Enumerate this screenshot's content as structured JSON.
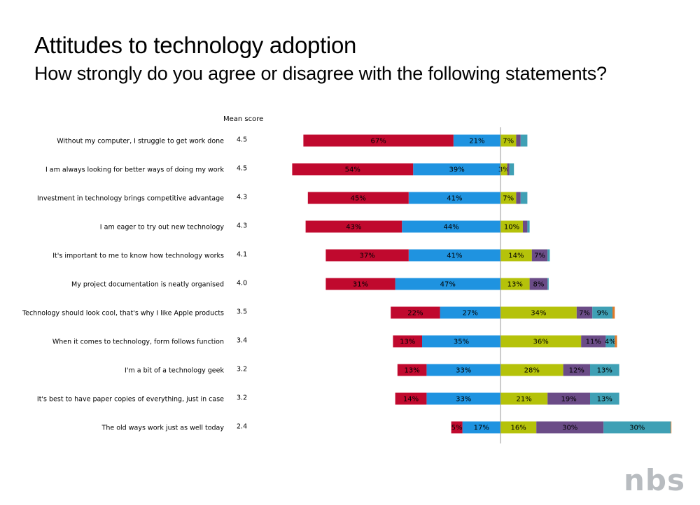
{
  "title": "Attitudes to technology adoption",
  "subtitle": "How strongly do you agree or disagree with the following statements?",
  "mean_header": "Mean score",
  "logo_text": "nbs",
  "colors": {
    "strongly_agree": "#c0092e",
    "agree": "#1f93e0",
    "neutral": "#b5c20a",
    "disagree": "#6b4c87",
    "strongly_disagree": "#3fa0b5",
    "other": "#e07a2a",
    "midline": "#9a9a9a"
  },
  "chart_data": {
    "type": "bar",
    "orientation": "horizontal",
    "stacked": true,
    "diverging": true,
    "categories": [
      "Without my computer, I struggle to get work done",
      "I am always looking for better ways of doing my work",
      "Investment in technology brings competitive advantage",
      "I am eager to try out new technology",
      "It's important to me to know how technology works",
      "My project documentation is neatly organised",
      "Technology should look cool, that's why I like Apple products",
      "When it comes to technology, form follows function",
      "I'm a bit of a technology geek",
      "It's best to have paper copies of everything, just in case",
      "The old ways work just as well today"
    ],
    "mean_scores": [
      "4.5",
      "4.5",
      "4.3",
      "4.3",
      "4.1",
      "4.0",
      "3.5",
      "3.4",
      "3.2",
      "3.2",
      "2.4"
    ],
    "series": [
      {
        "key": "strongly_agree",
        "side": "left",
        "values": [
          67,
          54,
          45,
          43,
          37,
          31,
          22,
          13,
          13,
          14,
          5
        ],
        "labels": [
          "67%",
          "54%",
          "45%",
          "43%",
          "37%",
          "31%",
          "22%",
          "13%",
          "13%",
          "14%",
          "5%"
        ]
      },
      {
        "key": "agree",
        "side": "left",
        "values": [
          21,
          39,
          41,
          44,
          41,
          47,
          27,
          35,
          33,
          33,
          17
        ],
        "labels": [
          "21%",
          "39%",
          "41%",
          "44%",
          "41%",
          "47%",
          "27%",
          "35%",
          "33%",
          "33%",
          "17%"
        ]
      },
      {
        "key": "neutral",
        "side": "right",
        "values": [
          7,
          3,
          7,
          10,
          14,
          13,
          34,
          36,
          28,
          21,
          16
        ],
        "labels": [
          "7%",
          "3%",
          "7%",
          "10%",
          "14%",
          "13%",
          "34%",
          "36%",
          "28%",
          "21%",
          "16%"
        ]
      },
      {
        "key": "disagree",
        "side": "right",
        "values": [
          2,
          1,
          2,
          2,
          7,
          8,
          7,
          11,
          12,
          19,
          30
        ],
        "labels": [
          "",
          "",
          "",
          "",
          "7%",
          "8%",
          "7%",
          "11%",
          "12%",
          "19%",
          "30%"
        ]
      },
      {
        "key": "strongly_disagree",
        "side": "right",
        "values": [
          3,
          2,
          3,
          1,
          1,
          0.5,
          9,
          4,
          13,
          13,
          30
        ],
        "labels": [
          "",
          "",
          "",
          "",
          "",
          "",
          "9%",
          "4%",
          "13%",
          "13%",
          "30%"
        ]
      },
      {
        "key": "other",
        "side": "right",
        "values": [
          0,
          0,
          0,
          0,
          0,
          0,
          1,
          1,
          0,
          0,
          0.3
        ],
        "labels": [
          "",
          "",
          "",
          "",
          "",
          "",
          "",
          "",
          "",
          "",
          ""
        ]
      }
    ]
  }
}
